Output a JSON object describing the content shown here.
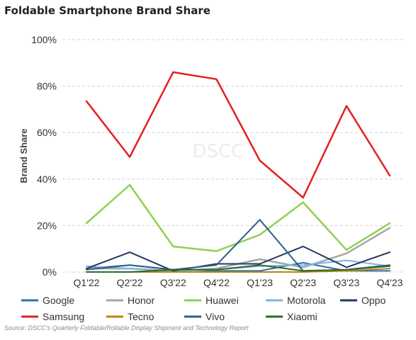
{
  "chart_data": {
    "type": "line",
    "title": "Foldable Smartphone Brand Share",
    "ylabel": "Brand Share",
    "xlabel": "",
    "ylim": [
      0,
      100
    ],
    "y_ticks": [
      "0%",
      "20%",
      "40%",
      "60%",
      "80%",
      "100%"
    ],
    "y_tick_values": [
      0,
      20,
      40,
      60,
      80,
      100
    ],
    "grid": true,
    "legend_position": "bottom",
    "watermark": "DSCC",
    "source": "Source: DSCC's Quarterly Foldable/Rollable Display Shipment and Technology Report",
    "categories": [
      "Q1'22",
      "Q2'22",
      "Q3'22",
      "Q4'22",
      "Q1'23",
      "Q2'23",
      "Q3'23",
      "Q4'23"
    ],
    "series": [
      {
        "name": "Google",
        "color": "#2e6fb3",
        "values": [
          1.5,
          3,
          1,
          0.5,
          0.5,
          4,
          0.5,
          0.5
        ]
      },
      {
        "name": "Honor",
        "color": "#a6a6a6",
        "values": [
          1.5,
          1.5,
          0.5,
          1.5,
          5.5,
          2,
          8,
          19
        ]
      },
      {
        "name": "Huawei",
        "color": "#8fd14f",
        "values": [
          21,
          37.5,
          11,
          9,
          16,
          30,
          9.5,
          21
        ]
      },
      {
        "name": "Motorola",
        "color": "#7fb2e0",
        "values": [
          2.5,
          1.5,
          0.5,
          1,
          2.5,
          3,
          5,
          2.5
        ]
      },
      {
        "name": "Oppo",
        "color": "#1f3864",
        "values": [
          1.5,
          8.5,
          0.5,
          3.5,
          3.5,
          11,
          2,
          8.5
        ]
      },
      {
        "name": "Samsung",
        "color": "#e31f1f",
        "values": [
          73.5,
          49.5,
          86,
          83,
          48,
          32,
          71.5,
          41.5
        ]
      },
      {
        "name": "Tecno",
        "color": "#b8860b",
        "values": [
          0,
          0,
          0,
          0,
          0,
          0,
          0.5,
          1.5
        ]
      },
      {
        "name": "Vivo",
        "color": "#2e5f8a",
        "values": [
          1,
          3,
          1,
          3,
          22.5,
          0.5,
          1,
          3
        ]
      },
      {
        "name": "Xiaomi",
        "color": "#2d6a27",
        "values": [
          0,
          0,
          1,
          1,
          3,
          0.5,
          1,
          2.5
        ]
      }
    ]
  }
}
